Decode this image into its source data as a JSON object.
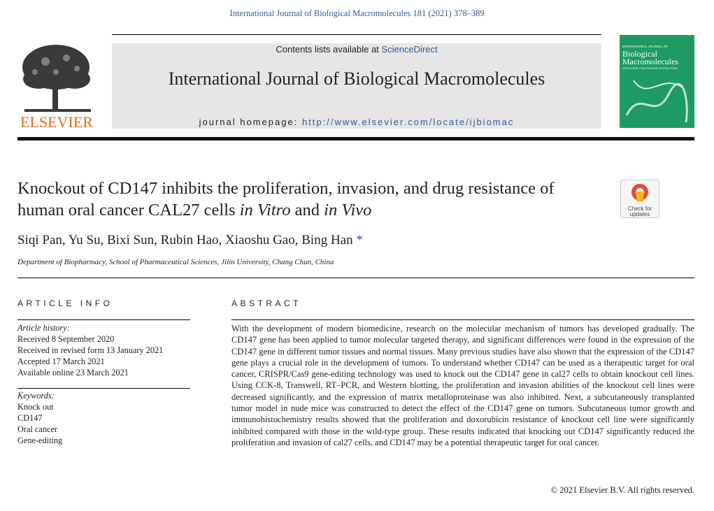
{
  "header": {
    "citation": "International Journal of Biological Macromolecules 181 (2021) 378–389",
    "contents_prefix": "Contents lists available at",
    "contents_link": "ScienceDirect",
    "journal_title": "International Journal of Biological Macromolecules",
    "homepage_label": "journal homepage:",
    "homepage_url": "http://www.elsevier.com/locate/ijbiomac",
    "publisher": "ELSEVIER",
    "cover_small": "INTERNATIONAL JOURNAL OF",
    "cover_title": "Biological Macromolecules",
    "cover_subtitle": "STRUCTURE, FUNCTION AND INTERACTIONS"
  },
  "badge": {
    "label": "Check for updates"
  },
  "article": {
    "title_parts": [
      "Knockout of CD147 inhibits the proliferation, invasion, and drug resistance of human oral cancer CAL27 cells ",
      "in Vitro",
      " and ",
      "in Vivo"
    ],
    "authors": "Siqi Pan, Yu Su, Bixi Sun, Rubin Hao, Xiaoshu Gao, Bing Han",
    "corresponding_mark": "*",
    "affiliation": "Department of Biopharmacy, School of Pharmaceutical Sciences, Jilin University, Chang Chun, China"
  },
  "article_info": {
    "heading": "ARTICLE INFO",
    "history_label": "Article history:",
    "history": [
      "Received 8 September 2020",
      "Received in revised form 13 January 2021",
      "Accepted 17 March 2021",
      "Available online 23 March 2021"
    ],
    "keywords_label": "Keywords:",
    "keywords": [
      "Knock out",
      "CD147",
      "Oral cancer",
      "Gene-editing"
    ]
  },
  "abstract": {
    "heading": "ABSTRACT",
    "text": "With the development of modern biomedicine, research on the molecular mechanism of tumors has developed gradually. The CD147 gene has been applied to tumor molecular targeted therapy, and significant differences were found in the expression of the CD147 gene in different tumor tissues and normal tissues. Many previous studies have also shown that the expression of the CD147 gene plays a crucial role in the development of tumors. To understand whether CD147 can be used as a therapeutic target for oral cancer, CRISPR/Cas9 gene-editing technology was used to knock out the CD147 gene in cal27 cells to obtain knockout cell lines. Using CCK-8, Transwell, RT–PCR, and Western blotting, the proliferation and invasion abilities of the knockout cell lines were decreased significantly, and the expression of matrix metalloproteinase was also inhibited. Next, a subcutaneously transplanted tumor model in nude mice was constructed to detect the effect of the CD147 gene on tumors. Subcutaneous tumor growth and immunohistochemistry results showed that the proliferation and doxorubicin resistance of knockout cell line were significantly inhibited compared with those in the wild-type group. These results indicated that knocking out CD147 significantly reduced the proliferation and invasion of cal27 cells, and CD147 may be a potential therapeutic target for oral cancer.",
    "copyright": "© 2021 Elsevier B.V. All rights reserved."
  }
}
